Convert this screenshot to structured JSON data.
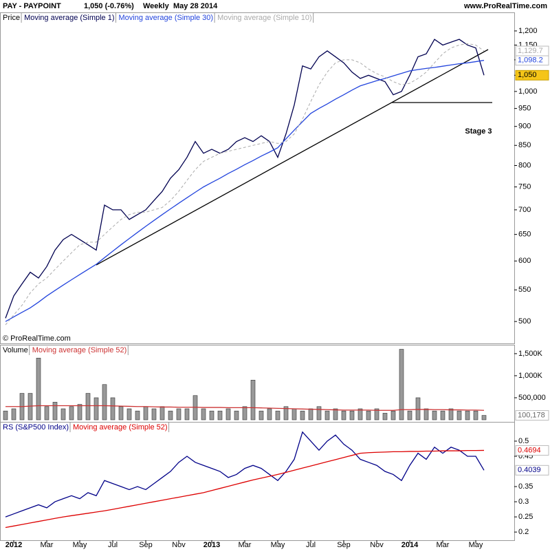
{
  "header": {
    "symbol": "PAY - PAYPOINT",
    "quote": "1,050 (-0.76%)",
    "period": "Weekly",
    "date": "May 28 2014",
    "site": "www.ProRealTime.com"
  },
  "copyright": "© ProRealTime.com",
  "annotation": "Stage 3",
  "chart_data": [
    {
      "type": "line",
      "title": "Price",
      "log_scale": true,
      "ylim": [
        470,
        1225
      ],
      "yticks": [
        500,
        550,
        600,
        650,
        700,
        750,
        800,
        850,
        900,
        950,
        {
          "value": 1000,
          "label": "1,000"
        },
        {
          "value": 1050,
          "label": "1,050"
        },
        {
          "value": 1100,
          "label": "1,100"
        },
        {
          "value": 1150,
          "label": "1,150"
        },
        {
          "value": 1200,
          "label": "1,200"
        }
      ],
      "series": [
        {
          "name": "Moving average (Simple 1)",
          "color": "#000050",
          "values": [
            505,
            540,
            560,
            580,
            570,
            590,
            620,
            640,
            650,
            640,
            630,
            620,
            710,
            700,
            700,
            680,
            690,
            700,
            720,
            740,
            770,
            790,
            820,
            860,
            830,
            840,
            830,
            840,
            860,
            870,
            860,
            875,
            860,
            820,
            880,
            960,
            1080,
            1070,
            1110,
            1130,
            1110,
            1090,
            1060,
            1040,
            1050,
            1040,
            1030,
            990,
            1000,
            1050,
            1110,
            1120,
            1170,
            1150,
            1160,
            1170,
            1150,
            1140,
            1050
          ],
          "last_label": "1,050"
        },
        {
          "name": "Moving average (Simple 30)",
          "color": "#2244dd",
          "values": [
            500,
            507,
            514,
            521,
            530,
            540,
            549,
            558,
            567,
            576,
            585,
            594,
            606,
            618,
            630,
            642,
            654,
            666,
            678,
            690,
            702,
            714,
            726,
            738,
            750,
            760,
            770,
            781,
            791,
            802,
            812,
            823,
            833,
            844,
            867,
            890,
            913,
            936,
            950,
            963,
            977,
            990,
            1004,
            1017,
            1025,
            1033,
            1040,
            1048,
            1056,
            1064,
            1068,
            1072,
            1075,
            1079,
            1083,
            1087,
            1090,
            1094,
            1098.2
          ],
          "last_label": "1,098.2"
        },
        {
          "name": "Moving average (Simple 10)",
          "color": "#aaaaaa",
          "dashed": true,
          "values": [
            495,
            510,
            525,
            545,
            560,
            570,
            585,
            600,
            615,
            630,
            635,
            635,
            650,
            665,
            680,
            690,
            695,
            695,
            700,
            705,
            720,
            740,
            765,
            790,
            810,
            820,
            830,
            835,
            840,
            845,
            850,
            855,
            860,
            855,
            860,
            880,
            920,
            970,
            1020,
            1060,
            1090,
            1100,
            1100,
            1090,
            1070,
            1055,
            1045,
            1030,
            1020,
            1025,
            1040,
            1060,
            1090,
            1120,
            1140,
            1150,
            1155,
            1150,
            1129.7
          ],
          "last_label": "1,129.7"
        }
      ]
    },
    {
      "type": "bar",
      "title": "Volume",
      "ylim": [
        0,
        1670000
      ],
      "yticks": [
        {
          "value": 500000,
          "label": "500,000"
        },
        {
          "value": 1000000,
          "label": "1,000K"
        },
        {
          "value": 1500000,
          "label": "1,500K"
        }
      ],
      "series": [
        {
          "name": "Volume",
          "color": "#999999",
          "values": [
            200000,
            250000,
            600000,
            600000,
            1400000,
            300000,
            400000,
            250000,
            300000,
            350000,
            600000,
            500000,
            800000,
            500000,
            300000,
            250000,
            200000,
            300000,
            250000,
            300000,
            200000,
            250000,
            250000,
            550000,
            250000,
            200000,
            200000,
            250000,
            200000,
            300000,
            900000,
            200000,
            250000,
            200000,
            300000,
            250000,
            200000,
            250000,
            300000,
            200000,
            250000,
            200000,
            200000,
            250000,
            200000,
            250000,
            150000,
            200000,
            1600000,
            200000,
            500000,
            250000,
            200000,
            200000,
            250000,
            200000,
            200000,
            200000,
            100178
          ],
          "last_label": "100,178"
        },
        {
          "name": "Moving average (Simple 52)",
          "color": "#cc3333",
          "type": "line",
          "values": [
            300000,
            300000,
            300000,
            310000,
            320000,
            320000,
            320000,
            320000,
            320000,
            320000,
            320000,
            320000,
            320000,
            315000,
            310000,
            305000,
            300000,
            300000,
            295000,
            290000,
            290000,
            285000,
            285000,
            285000,
            280000,
            280000,
            280000,
            275000,
            275000,
            275000,
            275000,
            270000,
            265000,
            260000,
            255000,
            250000,
            245000,
            240000,
            235000,
            230000,
            225000,
            220000,
            220000,
            220000,
            220000,
            215000,
            215000,
            215000,
            230000,
            230000,
            235000,
            235000,
            230000,
            230000,
            225000,
            225000,
            220000,
            220000,
            215000
          ]
        }
      ]
    },
    {
      "type": "line",
      "ylim": [
        0.173,
        0.559
      ],
      "yticks": [
        0.2,
        0.25,
        0.3,
        0.35,
        0.45,
        0.5
      ],
      "categories": [
        null,
        "2012",
        null,
        null,
        null,
        "Mar",
        null,
        null,
        null,
        "May",
        null,
        null,
        null,
        "Jul",
        null,
        null,
        null,
        "Sep",
        null,
        null,
        null,
        "Nov",
        null,
        null,
        null,
        "2013",
        null,
        null,
        null,
        "Mar",
        null,
        null,
        null,
        "May",
        null,
        null,
        null,
        "Jul",
        null,
        null,
        null,
        "Sep",
        null,
        null,
        null,
        "Nov",
        null,
        null,
        null,
        "2014",
        null,
        null,
        null,
        "Mar",
        null,
        null,
        null,
        "May",
        null
      ],
      "series": [
        {
          "name": "RS (S&P500 Index)",
          "color": "#000088",
          "values": [
            0.25,
            0.26,
            0.27,
            0.28,
            0.29,
            0.28,
            0.3,
            0.31,
            0.32,
            0.31,
            0.33,
            0.32,
            0.37,
            0.36,
            0.35,
            0.34,
            0.35,
            0.34,
            0.36,
            0.38,
            0.4,
            0.43,
            0.45,
            0.43,
            0.42,
            0.41,
            0.4,
            0.38,
            0.39,
            0.41,
            0.42,
            0.41,
            0.39,
            0.37,
            0.4,
            0.44,
            0.53,
            0.5,
            0.47,
            0.5,
            0.52,
            0.49,
            0.47,
            0.44,
            0.43,
            0.42,
            0.4,
            0.39,
            0.37,
            0.42,
            0.46,
            0.44,
            0.48,
            0.46,
            0.48,
            0.47,
            0.45,
            0.45,
            0.4039
          ],
          "last_label": "0.4039"
        },
        {
          "name": "Moving average (Simple 52)",
          "color": "#dd0000",
          "values": [
            0.215,
            0.22,
            0.225,
            0.23,
            0.235,
            0.24,
            0.245,
            0.25,
            0.254,
            0.258,
            0.262,
            0.266,
            0.27,
            0.275,
            0.28,
            0.285,
            0.29,
            0.295,
            0.3,
            0.305,
            0.31,
            0.315,
            0.32,
            0.325,
            0.33,
            0.337,
            0.344,
            0.351,
            0.358,
            0.365,
            0.372,
            0.378,
            0.384,
            0.39,
            0.397,
            0.404,
            0.411,
            0.418,
            0.425,
            0.432,
            0.439,
            0.446,
            0.453,
            0.46,
            0.462,
            0.463,
            0.464,
            0.465,
            0.465,
            0.466,
            0.466,
            0.467,
            0.467,
            0.468,
            0.468,
            0.468,
            0.469,
            0.469,
            0.4694
          ],
          "last_label": "0.4694"
        }
      ]
    }
  ]
}
